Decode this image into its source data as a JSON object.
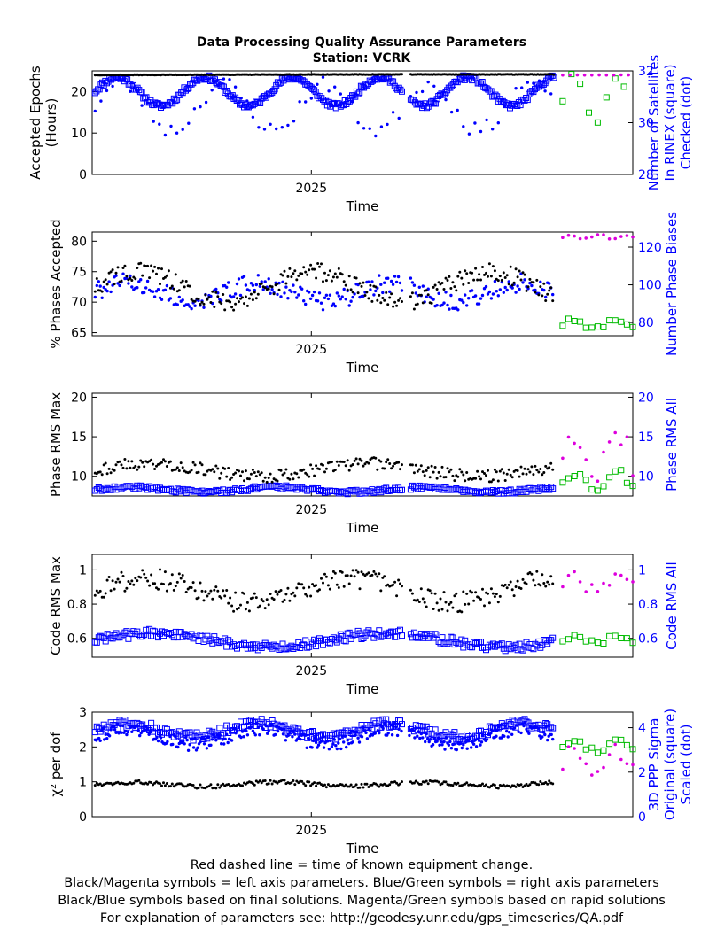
{
  "title": "Data Processing Quality Assurance Parameters",
  "subtitle": "Station: VCRK",
  "footnotes": [
    "Red dashed line = time of known equipment change.",
    "Black/Magenta symbols = left axis parameters. Blue/Green symbols = right axis parameters",
    "Black/Blue symbols based on final solutions.  Magenta/Green symbols based on rapid solutions",
    "For explanation of parameters see: http://geodesy.unr.edu/gps_timeseries/QA.pdf"
  ],
  "colors": {
    "left_final": "#000000",
    "right_final": "#0000ff",
    "left_rapid": "#dd00dd",
    "right_rapid": "#00bb00"
  },
  "chart_data": [
    {
      "type": "scatter",
      "name": "epochs",
      "x_range": [
        2024.85,
        2025.22
      ],
      "rapid_start": 2025.17,
      "xlabel": "Time",
      "x_ticks": [
        {
          "v": 2025.0,
          "label": "2025"
        }
      ],
      "ylabel_left": [
        "Accepted Epochs",
        "(Hours)"
      ],
      "ylabel_right": [
        "Number of Satellites",
        "In RINEX (square)",
        "Checked (dot)"
      ],
      "ylim_left": [
        0,
        25
      ],
      "ylim_right": [
        28,
        32
      ],
      "yticks_left": [
        0,
        10,
        20
      ],
      "yticks_right": [
        28,
        30,
        32
      ],
      "left_series": {
        "mode": "gen",
        "base": 24,
        "amp": 0.15,
        "period": 1,
        "jitter": 0.1,
        "step": 0.001
      },
      "right_square_series": {
        "mode": "gen",
        "base": 31.2,
        "amp": 0.55,
        "period": 0.06,
        "jitter": 0.2,
        "step": 0.001
      },
      "right_dot_series": {
        "mode": "gen",
        "base": 30.6,
        "amp": 0.9,
        "period": 0.07,
        "jitter": 0.6,
        "step": 0.004
      },
      "gaps": [
        [
          2025.062,
          2025.067
        ]
      ],
      "rapid_left": {
        "mode": "gen",
        "base": 24,
        "amp": 0.1,
        "period": 1,
        "jitter": 0.05,
        "step": 0.005
      },
      "rapid_right": {
        "mode": "gen",
        "base": 30.9,
        "amp": 0.9,
        "period": 0.03,
        "jitter": 0.3,
        "step": 0.006
      },
      "rapid_right_marker": "dot"
    },
    {
      "type": "scatter",
      "name": "phases",
      "x_range": [
        2024.85,
        2025.22
      ],
      "rapid_start": 2025.17,
      "xlabel": "Time",
      "x_ticks": [
        {
          "v": 2025.0,
          "label": "2025"
        }
      ],
      "ylabel_left": [
        "% Phases Accepted"
      ],
      "ylabel_right": [
        "Number Phase Biases"
      ],
      "ylim_left": [
        64.5,
        81.5
      ],
      "ylim_right": [
        73,
        128
      ],
      "yticks_left": [
        65,
        70,
        75,
        80
      ],
      "yticks_right": [
        80,
        100,
        120
      ],
      "left_series": {
        "mode": "gen",
        "base": 72.5,
        "amp": 2.5,
        "period": 0.12,
        "jitter": 3,
        "step": 0.0012
      },
      "right_dot_series": {
        "mode": "gen",
        "base": 96,
        "amp": 5,
        "period": 0.09,
        "jitter": 10,
        "step": 0.0012
      },
      "gaps": [
        [
          2025.062,
          2025.067
        ]
      ],
      "rapid_left": {
        "mode": "gen",
        "base": 80.7,
        "amp": 0.3,
        "period": 0.02,
        "jitter": 0.4,
        "step": 0.004
      },
      "rapid_right": {
        "mode": "gen",
        "base": 79,
        "amp": 2,
        "period": 0.03,
        "jitter": 3,
        "step": 0.004
      },
      "rapid_right_marker": "dot"
    },
    {
      "type": "scatter",
      "name": "phase-rms",
      "x_range": [
        2024.85,
        2025.22
      ],
      "rapid_start": 2025.17,
      "xlabel": "Time",
      "x_ticks": [
        {
          "v": 2025.0,
          "label": "2025"
        }
      ],
      "ylabel_left": [
        "Phase RMS Max"
      ],
      "ylabel_right": [
        "Phase RMS All"
      ],
      "ylim_left": [
        7.5,
        20.5
      ],
      "ylim_right": [
        7.5,
        20.5
      ],
      "yticks_left": [
        10,
        15,
        20
      ],
      "yticks_right": [
        10,
        15,
        20
      ],
      "left_series": {
        "mode": "gen",
        "base": 10.8,
        "amp": 0.8,
        "period": 0.15,
        "jitter": 1.6,
        "step": 0.0012
      },
      "right_square_series": {
        "mode": "gen",
        "base": 8.3,
        "amp": 0.3,
        "period": 0.1,
        "jitter": 0.5,
        "step": 0.0012
      },
      "gaps": [
        [
          2025.062,
          2025.067
        ]
      ],
      "rapid_left": {
        "mode": "gen",
        "base": 13,
        "amp": 2.5,
        "period": 0.03,
        "jitter": 3,
        "step": 0.004
      },
      "rapid_right": {
        "mode": "gen",
        "base": 9.5,
        "amp": 1,
        "period": 0.03,
        "jitter": 1.2,
        "step": 0.004
      },
      "rapid_right_marker": "square"
    },
    {
      "type": "scatter",
      "name": "code-rms",
      "x_range": [
        2024.85,
        2025.22
      ],
      "rapid_start": 2025.17,
      "xlabel": "Time",
      "x_ticks": [
        {
          "v": 2025.0,
          "label": "2025"
        }
      ],
      "ylabel_left": [
        "Code RMS Max"
      ],
      "ylabel_right": [
        "Code RMS All"
      ],
      "ylim_left": [
        0.49,
        1.09
      ],
      "ylim_right": [
        0.49,
        1.09
      ],
      "yticks_left": [
        0.6,
        0.8,
        1
      ],
      "yticks_right": [
        0.6,
        0.8,
        1
      ],
      "left_series": {
        "mode": "gen",
        "base": 0.88,
        "amp": 0.07,
        "period": 0.14,
        "jitter": 0.12,
        "step": 0.0012
      },
      "right_square_series": {
        "mode": "gen",
        "base": 0.59,
        "amp": 0.04,
        "period": 0.16,
        "jitter": 0.05,
        "step": 0.0012
      },
      "gaps": [
        [
          2025.062,
          2025.067
        ]
      ],
      "rapid_left": {
        "mode": "gen",
        "base": 0.92,
        "amp": 0.05,
        "period": 0.03,
        "jitter": 0.08,
        "step": 0.004
      },
      "rapid_right": {
        "mode": "gen",
        "base": 0.59,
        "amp": 0.02,
        "period": 0.03,
        "jitter": 0.03,
        "step": 0.004
      },
      "rapid_right_marker": "square"
    },
    {
      "type": "scatter",
      "name": "chi2",
      "x_range": [
        2024.85,
        2025.22
      ],
      "rapid_start": 2025.17,
      "xlabel": "Time",
      "x_ticks": [
        {
          "v": 2025.0,
          "label": "2025"
        }
      ],
      "ylabel_left": [
        "χ² per dof"
      ],
      "ylabel_right": [
        "3D PPP Sigma",
        "Original (square)",
        "Scaled (dot)"
      ],
      "ylim_left": [
        0,
        3
      ],
      "ylim_right": [
        0,
        4.7
      ],
      "yticks_left": [
        0,
        1,
        2,
        3
      ],
      "yticks_right": [
        0,
        2,
        4
      ],
      "left_series": {
        "mode": "gen",
        "base": 0.93,
        "amp": 0.06,
        "period": 0.1,
        "jitter": 0.12,
        "step": 0.0012
      },
      "right_square_series": {
        "mode": "gen",
        "base": 3.9,
        "amp": 0.3,
        "period": 0.09,
        "jitter": 0.4,
        "step": 0.0012
      },
      "right_dot_series": {
        "mode": "gen",
        "base": 3.6,
        "amp": 0.35,
        "period": 0.09,
        "jitter": 0.6,
        "step": 0.0009
      },
      "gaps": [
        [
          2025.062,
          2025.067
        ]
      ],
      "rapid_left": {
        "mode": "gen",
        "base": 1.5,
        "amp": 0.5,
        "period": 0.03,
        "jitter": 0.6,
        "step": 0.004
      },
      "rapid_right": {
        "mode": "gen",
        "base": 3.2,
        "amp": 0.2,
        "period": 0.03,
        "jitter": 0.3,
        "step": 0.004
      },
      "rapid_right_marker": "square"
    }
  ]
}
